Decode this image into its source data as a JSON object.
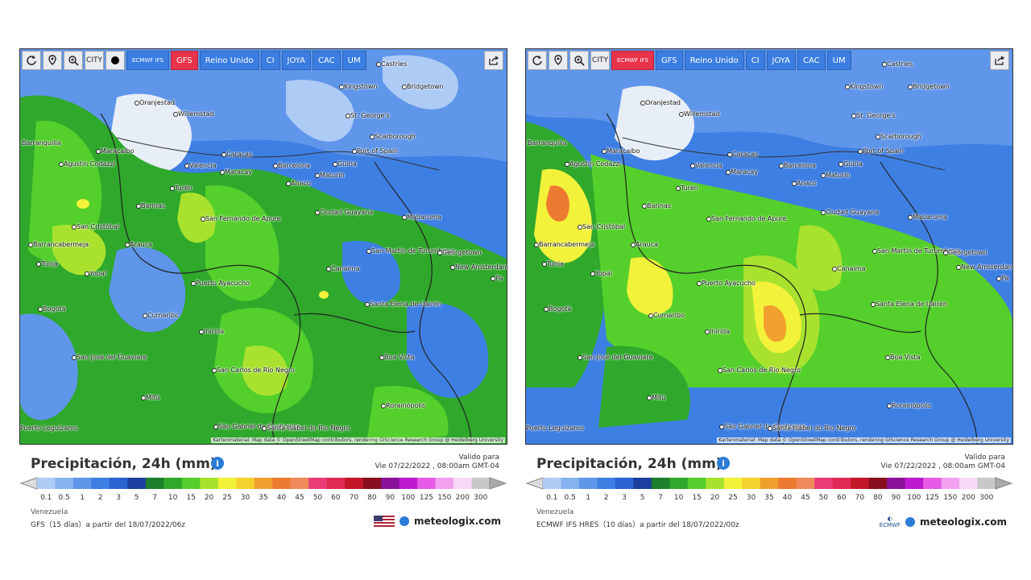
{
  "toolbar": {
    "city_label": "CITY",
    "models": [
      "ECMWF IFS",
      "GFS",
      "Reino Unido",
      "CI",
      "JOYA",
      "CAC",
      "UM"
    ]
  },
  "panels": [
    {
      "active_model": "GFS",
      "title": "Precipitación, 24h (mm)",
      "valid_label": "Valido para",
      "valid_date": "Vie 07/22/2022 , 08:00am GMT-04",
      "region": "Venezuela",
      "source": "GFS（15 días）a partir del 18/07/2022/06z",
      "brand": "meteologix.com"
    },
    {
      "active_model": "ECMWF IFS",
      "title": "Precipitación, 24h (mm)",
      "valid_label": "Valido para",
      "valid_date": "Vie 07/22/2022 , 08:00am GMT-04",
      "region": "Venezuela",
      "source": "ECMWF IFS HRES（10 días）a partir del 18/07/2022/00z",
      "brand": "meteologix.com",
      "brand_logo": "ECMWF"
    }
  ],
  "attribution": "Kartenmaterial: Map data © OpenStreetMap contributors, rendering GIScience Research Group @ Heidelberg University",
  "scale": {
    "ticks": [
      "0.1",
      "0.5",
      "1",
      "2",
      "3",
      "5",
      "7",
      "10",
      "15",
      "20",
      "25",
      "30",
      "35",
      "40",
      "45",
      "50",
      "60",
      "70",
      "80",
      "90",
      "100",
      "125",
      "150",
      "200",
      "300"
    ],
    "colors": [
      "#aecbf5",
      "#86b2ef",
      "#5f96ea",
      "#3e7fe3",
      "#2a63cf",
      "#1b3f9e",
      "#1d7e2c",
      "#2fa82c",
      "#55cf2b",
      "#a8e22e",
      "#f2f23a",
      "#f5d22e",
      "#f0a02d",
      "#ec7a30",
      "#f08a5a",
      "#ea3d78",
      "#e02a55",
      "#c2182a",
      "#8a0f1e",
      "#8a129a",
      "#c01ad0",
      "#e65ae6",
      "#f2a0f0",
      "#f7d8f7",
      "#c8c8c8"
    ]
  },
  "cities": [
    "Castries",
    "Kingstown",
    "Bridgetown",
    "Oranjestad",
    "Willemstad",
    "St. George's",
    "Scarborough",
    "Port of Spain",
    "Barranquilla",
    "Maracaibo",
    "Caracas",
    "Valencia",
    "Maracay",
    "Barcelona",
    "Güiria",
    "Maturín",
    "Agustín Codazzi",
    "Turén",
    "Anaco",
    "Ciudad Guayana",
    "Mabaruma",
    "Barinas",
    "San Fernando de Apure",
    "San Cristóbal",
    "Arauca",
    "Barrancabermeja",
    "San Martín de Turumbang",
    "Georgetown",
    "New Amsterdam",
    "Canaima",
    "Tunja",
    "Yopal",
    "Puerto Ayacucho",
    "Bogotá",
    "Cumaribo",
    "Santa Elena de Uairén",
    "Inírida",
    "San José del Guaviare",
    "Boa Vista",
    "San Carlos de Río Negro",
    "Mitú",
    "Rorainópolis",
    "São Gabriel da Cachoeira",
    "Santa Isabel do Rio Negro",
    "Puerto Leguízamo",
    "Pa"
  ],
  "colors": {
    "accent": "#3b7de0",
    "active_model": "#e8334a"
  }
}
